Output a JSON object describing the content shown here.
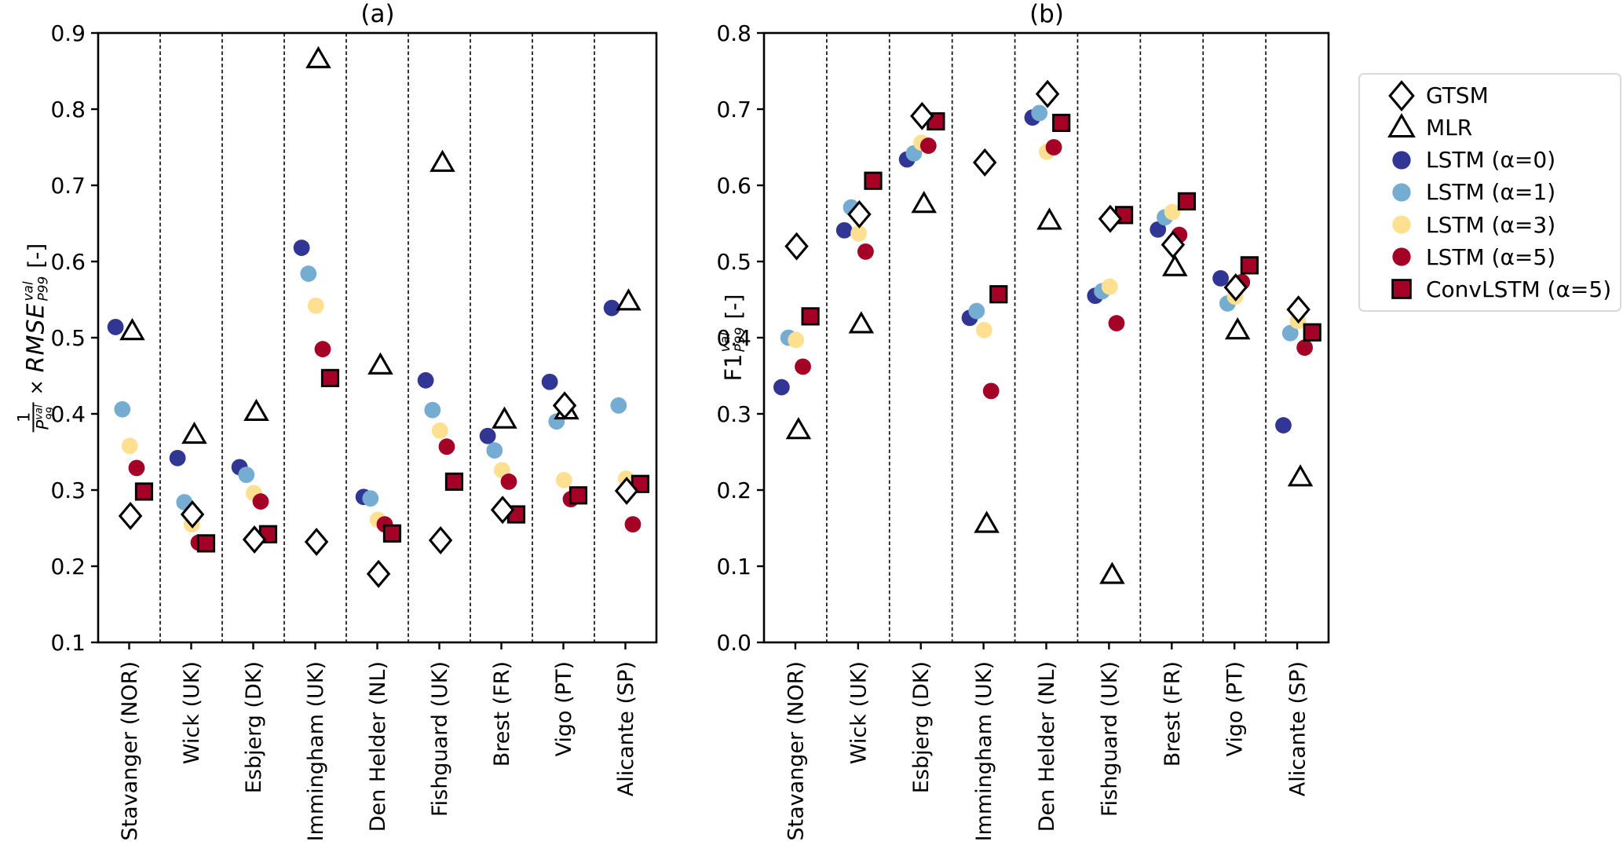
{
  "figure": {
    "titles": {
      "a": "(a)",
      "b": "(b)"
    },
    "ylabel_a": {
      "num": "1",
      "den_base": "P",
      "den_sub": "99",
      "den_sup": "val",
      "times": "×",
      "name": "RMSE",
      "name_sub": "P99",
      "name_sup": "val",
      "units": "[-]"
    },
    "ylabel_b": {
      "base": "F1",
      "sup": "val",
      "sub": "P99",
      "units": "[-]"
    }
  },
  "legend": {
    "position": "outside-right",
    "items": [
      {
        "label": "GTSM",
        "marker": "diamond",
        "fill": "#ffffff",
        "edge": "#000000"
      },
      {
        "label": "MLR",
        "marker": "triangle",
        "fill": "#ffffff",
        "edge": "#000000"
      },
      {
        "label": "LSTM (α=0)",
        "marker": "circle",
        "fill": "#313695",
        "edge": null
      },
      {
        "label": "LSTM (α=1)",
        "marker": "circle",
        "fill": "#74add1",
        "edge": null
      },
      {
        "label": "LSTM (α=3)",
        "marker": "circle",
        "fill": "#fee090",
        "edge": null
      },
      {
        "label": "LSTM (α=5)",
        "marker": "circle",
        "fill": "#a50026",
        "edge": null
      },
      {
        "label": "ConvLSTM (α=5)",
        "marker": "square",
        "fill": "#a50026",
        "edge": "#000000"
      }
    ]
  },
  "chart_data": [
    {
      "type": "scatter",
      "title": "(a)",
      "ylabel": "1/P99^val × RMSE_P99^val [-]",
      "xlabel": "",
      "ylim": [
        0.1,
        0.9
      ],
      "yticks": [
        "0.1",
        "0.2",
        "0.3",
        "0.4",
        "0.5",
        "0.6",
        "0.7",
        "0.8",
        "0.9"
      ],
      "grid": "vertical-dashed-separators",
      "categories": [
        "Stavanger (NOR)",
        "Wick (UK)",
        "Esbjerg (DK)",
        "Immingham (UK)",
        "Den Helder (NL)",
        "Fishguard (UK)",
        "Brest (FR)",
        "Vigo (PT)",
        "Alicante (SP)"
      ],
      "series": [
        {
          "name": "GTSM",
          "marker": "diamond",
          "fill": "#ffffff",
          "edge": "#000000",
          "values": [
            0.266,
            0.268,
            0.235,
            0.232,
            0.19,
            0.234,
            0.274,
            0.411,
            0.299
          ]
        },
        {
          "name": "MLR",
          "marker": "triangle",
          "fill": "#ffffff",
          "edge": "#000000",
          "values": [
            0.508,
            0.372,
            0.402,
            0.865,
            0.463,
            0.729,
            0.392,
            0.404,
            0.547
          ]
        },
        {
          "name": "LSTM (α=0)",
          "marker": "circle",
          "fill": "#313695",
          "edge": null,
          "values": [
            0.514,
            0.342,
            0.33,
            0.618,
            0.291,
            0.444,
            0.371,
            0.442,
            0.539
          ]
        },
        {
          "name": "LSTM (α=1)",
          "marker": "circle",
          "fill": "#74add1",
          "edge": null,
          "values": [
            0.406,
            0.284,
            0.32,
            0.584,
            0.289,
            0.405,
            0.352,
            0.39,
            0.411
          ]
        },
        {
          "name": "LSTM (α=3)",
          "marker": "circle",
          "fill": "#fee090",
          "edge": null,
          "values": [
            0.358,
            0.255,
            0.296,
            0.542,
            0.261,
            0.378,
            0.326,
            0.313,
            0.315
          ]
        },
        {
          "name": "LSTM (α=5)",
          "marker": "circle",
          "fill": "#a50026",
          "edge": null,
          "values": [
            0.329,
            0.231,
            0.285,
            0.485,
            0.255,
            0.357,
            0.311,
            0.288,
            0.255
          ]
        },
        {
          "name": "ConvLSTM (α=5)",
          "marker": "square",
          "fill": "#a50026",
          "edge": "#000000",
          "values": [
            0.298,
            0.23,
            0.242,
            0.447,
            0.243,
            0.311,
            0.268,
            0.293,
            0.308
          ]
        }
      ]
    },
    {
      "type": "scatter",
      "title": "(b)",
      "ylabel": "F1_P99^val [-]",
      "xlabel": "",
      "ylim": [
        0.0,
        0.8
      ],
      "yticks": [
        "0.0",
        "0.1",
        "0.2",
        "0.3",
        "0.4",
        "0.5",
        "0.6",
        "0.7",
        "0.8"
      ],
      "grid": "vertical-dashed-separators",
      "categories": [
        "Stavanger (NOR)",
        "Wick (UK)",
        "Esbjerg (DK)",
        "Immingham (UK)",
        "Den Helder (NL)",
        "Fishguard (UK)",
        "Brest (FR)",
        "Vigo (PT)",
        "Alicante (SP)"
      ],
      "series": [
        {
          "name": "GTSM",
          "marker": "diamond",
          "fill": "#ffffff",
          "edge": "#000000",
          "values": [
            0.52,
            0.562,
            0.691,
            0.63,
            0.72,
            0.556,
            0.522,
            0.466,
            0.437
          ]
        },
        {
          "name": "MLR",
          "marker": "triangle",
          "fill": "#ffffff",
          "edge": "#000000",
          "values": [
            0.278,
            0.417,
            0.575,
            0.155,
            0.553,
            0.088,
            0.492,
            0.409,
            0.216
          ]
        },
        {
          "name": "LSTM (α=0)",
          "marker": "circle",
          "fill": "#313695",
          "edge": null,
          "values": [
            0.335,
            0.541,
            0.634,
            0.426,
            0.689,
            0.455,
            0.542,
            0.478,
            0.285
          ]
        },
        {
          "name": "LSTM (α=1)",
          "marker": "circle",
          "fill": "#74add1",
          "edge": null,
          "values": [
            0.4,
            0.571,
            0.642,
            0.435,
            0.695,
            0.461,
            0.558,
            0.445,
            0.406
          ]
        },
        {
          "name": "LSTM (α=3)",
          "marker": "circle",
          "fill": "#fee090",
          "edge": null,
          "values": [
            0.397,
            0.537,
            0.656,
            0.41,
            0.644,
            0.467,
            0.565,
            0.454,
            0.422
          ]
        },
        {
          "name": "LSTM (α=5)",
          "marker": "circle",
          "fill": "#a50026",
          "edge": null,
          "values": [
            0.362,
            0.513,
            0.652,
            0.33,
            0.65,
            0.419,
            0.535,
            0.473,
            0.387
          ]
        },
        {
          "name": "ConvLSTM (α=5)",
          "marker": "square",
          "fill": "#a50026",
          "edge": "#000000",
          "values": [
            0.428,
            0.606,
            0.684,
            0.457,
            0.682,
            0.561,
            0.579,
            0.495,
            0.407
          ]
        }
      ]
    }
  ]
}
